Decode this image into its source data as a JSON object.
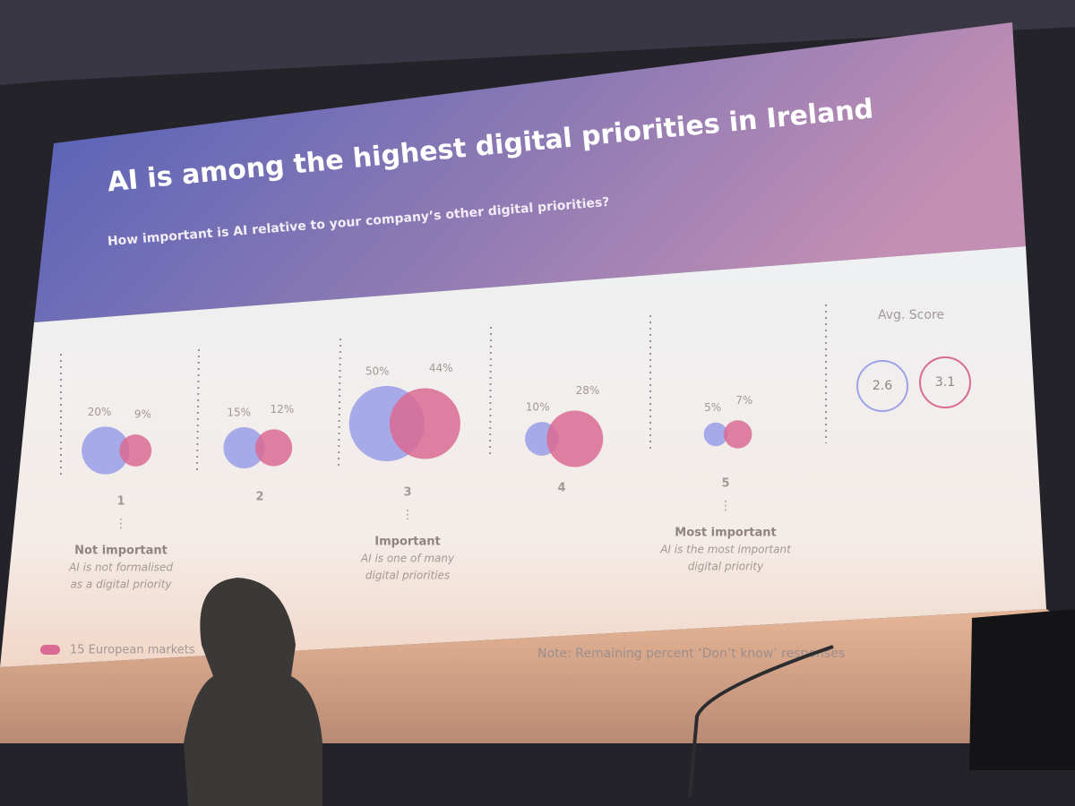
{
  "chart_data": {
    "type": "bubble",
    "title": "AI is among the highest digital priorities in Ireland",
    "subtitle": "How important is AI relative to your company’s other digital priorities?",
    "categories": [
      "1",
      "2",
      "3",
      "4",
      "5"
    ],
    "series": [
      {
        "color": "#9fa2e8",
        "values": [
          20,
          15,
          50,
          10,
          5
        ],
        "value_labels": [
          "20%",
          "15%",
          "50%",
          "10%",
          "5%"
        ]
      },
      {
        "name": "15 European markets",
        "color": "#da6a93",
        "values": [
          9,
          12,
          44,
          28,
          7
        ],
        "value_labels": [
          "9%",
          "12%",
          "44%",
          "28%",
          "7%"
        ]
      }
    ],
    "annotations": [
      {
        "category": "1",
        "heading": "Not important",
        "lines": [
          "AI is not formalised",
          "as a digital priority"
        ]
      },
      {
        "category": "3",
        "heading": "Important",
        "lines": [
          "AI is one of many",
          "digital priorities"
        ]
      },
      {
        "category": "5",
        "heading": "Most important",
        "lines": [
          "AI is the most important",
          "digital priority"
        ]
      }
    ],
    "avg_score": {
      "label": "Avg. Score",
      "values": [
        2.6,
        3.1
      ]
    },
    "note": "Note: Remaining percent ‘Don’t know’ responses"
  }
}
